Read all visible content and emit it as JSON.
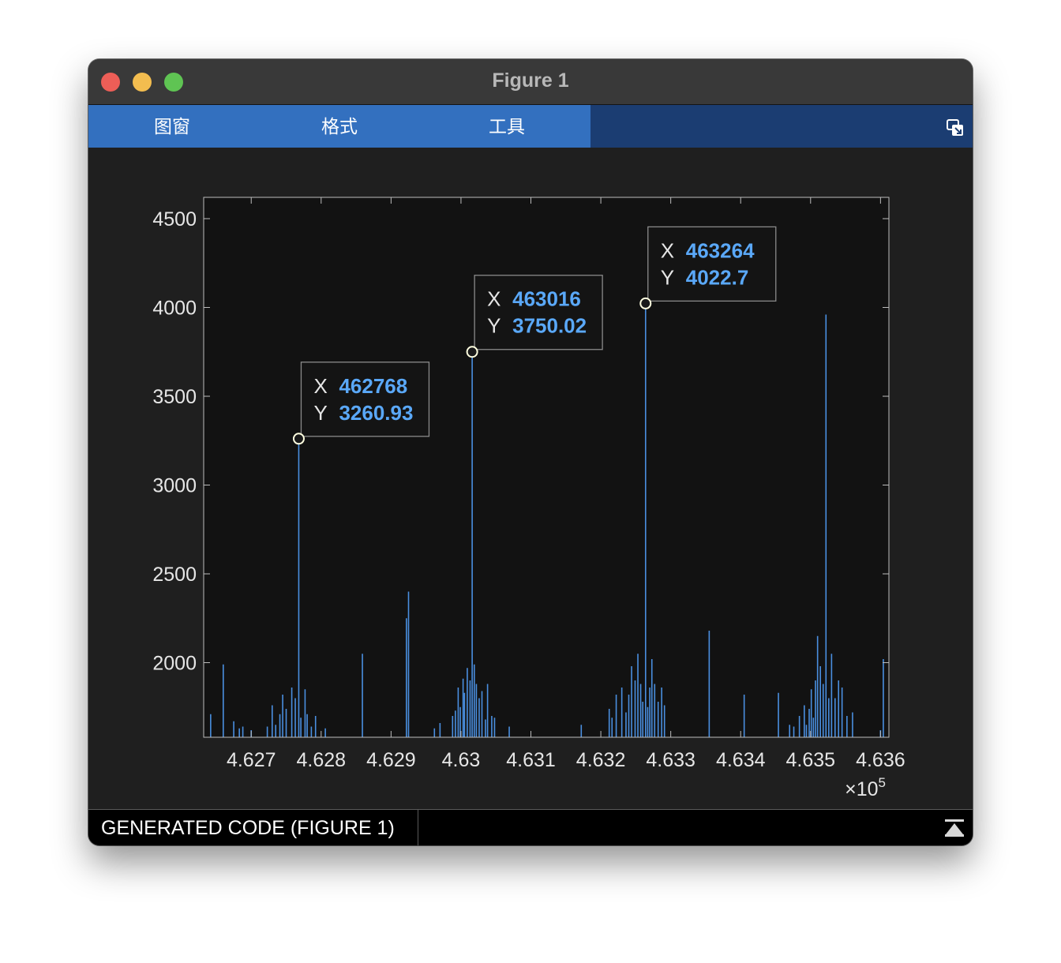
{
  "window": {
    "title": "Figure 1"
  },
  "tabs": [
    {
      "label": "图窗"
    },
    {
      "label": "格式"
    },
    {
      "label": "工具"
    }
  ],
  "icons": {
    "undock": "undock-icon",
    "expand": "expand-panel-icon"
  },
  "colors": {
    "series": "#4a8fe0",
    "datatip_value": "#5aa8f8",
    "axes_bg": "#121212"
  },
  "status": {
    "label": "GENERATED CODE (FIGURE 1)"
  },
  "chart_data": {
    "type": "bar",
    "xlim": [
      462632,
      463612
    ],
    "ylim": [
      1580,
      4620
    ],
    "xticks": [
      462700,
      462800,
      462900,
      463000,
      463100,
      463200,
      463300,
      463400,
      463500,
      463600
    ],
    "xtick_labels": [
      "4.627",
      "4.628",
      "4.629",
      "4.63",
      "4.631",
      "4.632",
      "4.633",
      "4.634",
      "4.635",
      "4.636"
    ],
    "yticks": [
      2000,
      2500,
      3000,
      3500,
      4000,
      4500
    ],
    "ytick_labels": [
      "2000",
      "2500",
      "3000",
      "3500",
      "4000",
      "4500"
    ],
    "x_exponent_label": "×10",
    "x_exponent_power": "5",
    "series": [
      {
        "x": [
          462642,
          462660,
          462675,
          462683,
          462688,
          462700,
          462723,
          462730,
          462735,
          462741,
          462745,
          462750,
          462758,
          462763,
          462768,
          462771,
          462777,
          462780,
          462786,
          462792,
          462806,
          462859,
          462922,
          462925,
          462962,
          462970,
          462988,
          462992,
          462996,
          462999,
          463003,
          463005,
          463009,
          463013,
          463016,
          463019,
          463022,
          463026,
          463030,
          463035,
          463038,
          463044,
          463048,
          463069,
          463172,
          463212,
          463216,
          463222,
          463230,
          463236,
          463240,
          463244,
          463249,
          463253,
          463257,
          463260,
          463264,
          463267,
          463270,
          463273,
          463277,
          463282,
          463287,
          463291,
          463355,
          463405,
          463454,
          463470,
          463476,
          463484,
          463491,
          463494,
          463498,
          463501,
          463504,
          463507,
          463510,
          463514,
          463518,
          463522,
          463526,
          463530,
          463535,
          463540,
          463545,
          463552,
          463560,
          463600,
          463604
        ],
        "y": [
          1710,
          1990,
          1670,
          1630,
          1640,
          1620,
          1640,
          1760,
          1650,
          1710,
          1820,
          1740,
          1860,
          1800,
          3260.93,
          1690,
          1850,
          1710,
          1640,
          1700,
          1630,
          2050,
          2250,
          2400,
          1630,
          1660,
          1700,
          1730,
          1860,
          1750,
          1910,
          1830,
          1970,
          1900,
          3750.02,
          1990,
          1880,
          1800,
          1840,
          1680,
          1880,
          1700,
          1690,
          1640,
          1650,
          1740,
          1690,
          1820,
          1860,
          1720,
          1820,
          1980,
          1900,
          2050,
          1880,
          1780,
          4022.7,
          1750,
          1860,
          2020,
          1880,
          1780,
          1860,
          1760,
          2180,
          1820,
          1830,
          1650,
          1640,
          1700,
          1760,
          1650,
          1740,
          1850,
          1690,
          1900,
          2150,
          1980,
          1880,
          3960,
          1800,
          2050,
          1800,
          1900,
          1860,
          1700,
          1720,
          1620,
          2020
        ]
      }
    ],
    "datatips": [
      {
        "x_label": "X",
        "y_label": "Y",
        "x": "462768",
        "y": "3260.93",
        "xv": 462768,
        "yv": 3260.93
      },
      {
        "x_label": "X",
        "y_label": "Y",
        "x": "463016",
        "y": "3750.02",
        "xv": 463016,
        "yv": 3750.02
      },
      {
        "x_label": "X",
        "y_label": "Y",
        "x": "463264",
        "y": "4022.7",
        "xv": 463264,
        "yv": 4022.7
      }
    ]
  }
}
